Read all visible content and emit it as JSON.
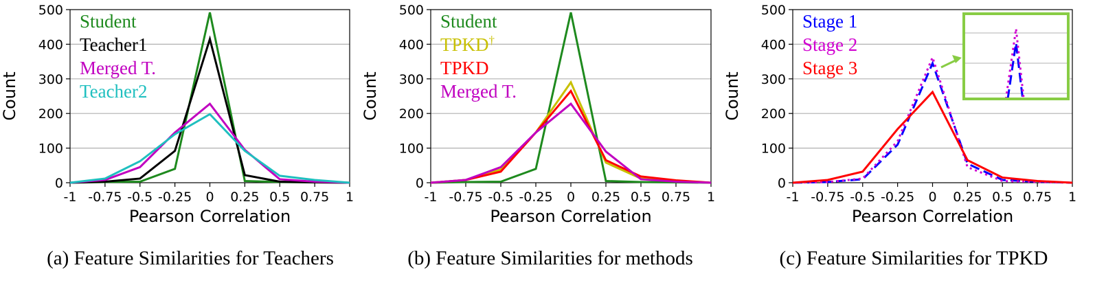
{
  "chart_data": [
    {
      "type": "line",
      "caption": "(a) Feature Similarities for Teachers",
      "xlabel": "Pearson Correlation",
      "ylabel": "Count",
      "x": [
        -1,
        -0.75,
        -0.5,
        -0.25,
        0,
        0.25,
        0.5,
        0.75,
        1
      ],
      "x_tick_labels": [
        "-1",
        "-0.75",
        "-0.5",
        "-0.25",
        "0",
        "0.25",
        "0.5",
        "0.75",
        "1"
      ],
      "ylim": [
        0,
        500
      ],
      "y_ticks": [
        0,
        100,
        200,
        300,
        400,
        500
      ],
      "grid": "horizontal",
      "legend_position": "top-left",
      "series": [
        {
          "name": "Student",
          "color": "#1e8a1e",
          "dash": "solid",
          "values": [
            0,
            2,
            3,
            40,
            492,
            5,
            2,
            1,
            0
          ]
        },
        {
          "name": "Teacher1",
          "color": "#000000",
          "dash": "solid",
          "values": [
            0,
            3,
            12,
            92,
            415,
            22,
            3,
            1,
            0
          ]
        },
        {
          "name": "Merged T.",
          "color": "#c000c0",
          "dash": "solid",
          "values": [
            0,
            8,
            45,
            145,
            228,
            95,
            10,
            3,
            0
          ]
        },
        {
          "name": "Teacher2",
          "color": "#1fbfbf",
          "dash": "solid",
          "values": [
            0,
            12,
            62,
            140,
            198,
            92,
            20,
            8,
            0
          ]
        }
      ]
    },
    {
      "type": "line",
      "caption": "(b) Feature Similarities for methods",
      "xlabel": "Pearson Correlation",
      "ylabel": "Count",
      "x": [
        -1,
        -0.75,
        -0.5,
        -0.25,
        0,
        0.25,
        0.5,
        0.75,
        1
      ],
      "x_tick_labels": [
        "-1",
        "-0.75",
        "-0.5",
        "-0.25",
        "0",
        "0.25",
        "0.5",
        "0.75",
        "1"
      ],
      "ylim": [
        0,
        500
      ],
      "y_ticks": [
        0,
        100,
        200,
        300,
        400,
        500
      ],
      "grid": "horizontal",
      "legend_position": "top-left",
      "series": [
        {
          "name": "Student",
          "color": "#1e8a1e",
          "dash": "solid",
          "values": [
            0,
            2,
            3,
            40,
            492,
            5,
            2,
            1,
            0
          ]
        },
        {
          "name": "TPKD",
          "superscript": "†",
          "color": "#c8c000",
          "dash": "solid",
          "values": [
            0,
            8,
            38,
            145,
            290,
            58,
            12,
            5,
            0
          ]
        },
        {
          "name": "TPKD",
          "color": "#ff0000",
          "dash": "solid",
          "values": [
            0,
            8,
            32,
            145,
            265,
            65,
            18,
            7,
            0
          ]
        },
        {
          "name": "Merged T.",
          "color": "#c000c0",
          "dash": "solid",
          "values": [
            0,
            8,
            45,
            145,
            228,
            90,
            10,
            3,
            0
          ]
        }
      ]
    },
    {
      "type": "line",
      "caption": "(c) Feature Similarities for TPKD",
      "xlabel": "Pearson Correlation",
      "ylabel": "Count",
      "x": [
        -1,
        -0.75,
        -0.5,
        -0.25,
        0,
        0.25,
        0.5,
        0.75,
        1
      ],
      "x_tick_labels": [
        "-1",
        "-0.75",
        "-0.5",
        "-0.25",
        "0",
        "0.25",
        "0.5",
        "0.75",
        "1"
      ],
      "ylim": [
        0,
        500
      ],
      "y_ticks": [
        0,
        100,
        200,
        300,
        400,
        500
      ],
      "grid": "horizontal",
      "legend_position": "top-left",
      "inset": {
        "description": "zoom on peak near 0",
        "border_color": "#88cc44"
      },
      "series": [
        {
          "name": "Stage 1",
          "color": "#0000ff",
          "dash": "dashed",
          "values": [
            0,
            2,
            10,
            110,
            345,
            55,
            8,
            3,
            0
          ]
        },
        {
          "name": "Stage 2",
          "color": "#d000d0",
          "dash": "dotted",
          "values": [
            0,
            2,
            12,
            120,
            362,
            45,
            5,
            2,
            0
          ]
        },
        {
          "name": "Stage 3",
          "color": "#ff0000",
          "dash": "solid",
          "values": [
            0,
            8,
            32,
            155,
            262,
            65,
            15,
            5,
            0
          ]
        }
      ]
    }
  ]
}
